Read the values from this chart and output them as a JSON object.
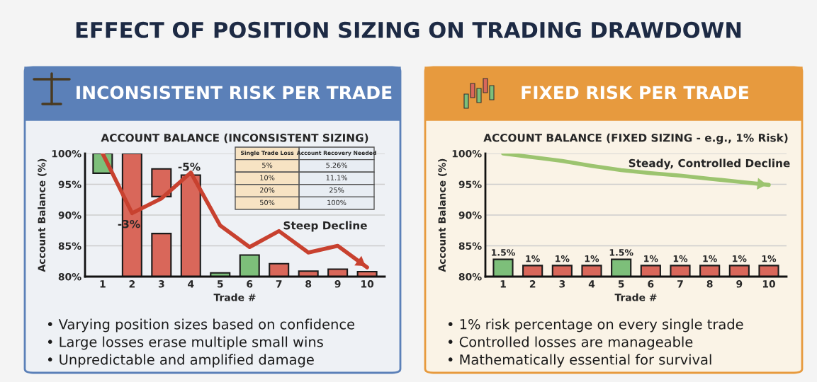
{
  "chart_data": [
    {
      "type": "other",
      "title": "EFFECT OF POSITION SIZING ON TRADING DRAWDOWN"
    },
    {
      "type": "bar",
      "title": "INCONSISTENT RISK PER TRADE",
      "subtitle": "ACCOUNT BALANCE (INCONSISTENT SIZING)",
      "xlabel": "Trade #",
      "ylabel": "Account Balance (%)",
      "categories": [
        "1",
        "2",
        "3",
        "4",
        "5",
        "6",
        "7",
        "8",
        "9",
        "10"
      ],
      "series": [
        {
          "type": "bar",
          "base": [
            96.8,
            80,
            93.0,
            80,
            80,
            80,
            80,
            80,
            80,
            80
          ],
          "values": [
            3.2,
            20,
            4.5,
            16.5,
            0.6,
            3.5,
            2.1,
            0.9,
            1.2,
            0.8
          ],
          "colors": [
            "#7dbf7a",
            "#d9675a",
            "#d9675a",
            "#d9675a",
            "#7dbf7a",
            "#7dbf7a",
            "#d9675a",
            "#d9675a",
            "#d9675a",
            "#d9675a"
          ]
        },
        {
          "type": "bar",
          "base": [
            null,
            null,
            80,
            null,
            null,
            null,
            null,
            null,
            null,
            null
          ],
          "values": [
            null,
            null,
            7.0,
            null,
            null,
            null,
            null,
            null,
            null,
            null
          ],
          "color": "#d9675a"
        },
        {
          "type": "line",
          "color": "#c8412f",
          "values": [
            100,
            90.3,
            92.7,
            96.9,
            88.3,
            84.8,
            87.4,
            83.9,
            85.0,
            81.5
          ]
        }
      ],
      "ylim": [
        80,
        100
      ],
      "yticks": [
        {
          "value": 80,
          "label": "80%"
        },
        {
          "value": 85,
          "label": "85%"
        },
        {
          "value": 90,
          "label": "90%"
        },
        {
          "value": 95,
          "label": "95%"
        },
        {
          "value": 100,
          "label": "100%"
        }
      ],
      "grid": "y",
      "marker": "none",
      "annotations": [
        "-3%",
        "-5%",
        "Steep Decline",
        "• Varying position sizes based on confidence",
        "• Large losses erase multiple small wins",
        "• Unpredictable and amplified damage"
      ]
    },
    {
      "type": "other",
      "annotations": [
        "Single Trade Loss",
        "Account Recovery Needed",
        "5%",
        "5.26%",
        "10%",
        "11.1%",
        "20%",
        "25%",
        "50%",
        "100%"
      ]
    },
    {
      "type": "bar",
      "title": "FIXED RISK PER TRADE",
      "subtitle": "ACCOUNT BALANCE (FIXED SIZING - e.g., 1% Risk)",
      "xlabel": "Trade #",
      "ylabel": "Account Balance (%)",
      "categories": [
        "1",
        "2",
        "3",
        "4",
        "5",
        "6",
        "7",
        "8",
        "9",
        "10"
      ],
      "series": [
        {
          "type": "bar",
          "values": [
            82.8,
            81.8,
            81.8,
            81.8,
            82.8,
            81.8,
            81.8,
            81.8,
            81.8,
            81.8
          ],
          "colors": [
            "#7dbf7a",
            "#d9675a",
            "#d9675a",
            "#d9675a",
            "#7dbf7a",
            "#d9675a",
            "#d9675a",
            "#d9675a",
            "#d9675a",
            "#d9675a"
          ]
        },
        {
          "type": "line",
          "color": "#9cc46f",
          "values": [
            100,
            99.4,
            98.8,
            98.0,
            97.3,
            96.8,
            96.4,
            95.9,
            95.4,
            94.9
          ]
        }
      ],
      "ylim": [
        80,
        100
      ],
      "yticks": [
        {
          "value": 80,
          "label": "80%"
        },
        {
          "value": 85,
          "label": "85%"
        },
        {
          "value": 90,
          "label": "90%"
        },
        {
          "value": 95,
          "label": "95%"
        },
        {
          "value": 100,
          "label": "100%"
        }
      ],
      "grid": "y",
      "marker": "none",
      "annotations": [
        "Steady, Controlled Decline",
        {
          "text": "1.5%",
          "x": "1",
          "y": 82.8
        },
        {
          "text": "1%",
          "x": "2",
          "y": 81.8
        },
        {
          "text": "1%",
          "x": "3",
          "y": 81.8
        },
        {
          "text": "1%",
          "x": "4",
          "y": 81.8
        },
        {
          "text": "1.5%",
          "x": "5",
          "y": 82.8
        },
        {
          "text": "1%",
          "x": "6",
          "y": 81.8
        },
        {
          "text": "1%",
          "x": "7",
          "y": 81.8
        },
        {
          "text": "1%",
          "x": "8",
          "y": 81.8
        },
        {
          "text": "1%",
          "x": "9",
          "y": 81.8
        },
        {
          "text": "1%",
          "x": "10",
          "y": 81.8
        },
        "• 1% risk percentage on every single trade",
        "• Controlled losses are manageable",
        "• Mathematically essential for survival"
      ]
    }
  ]
}
